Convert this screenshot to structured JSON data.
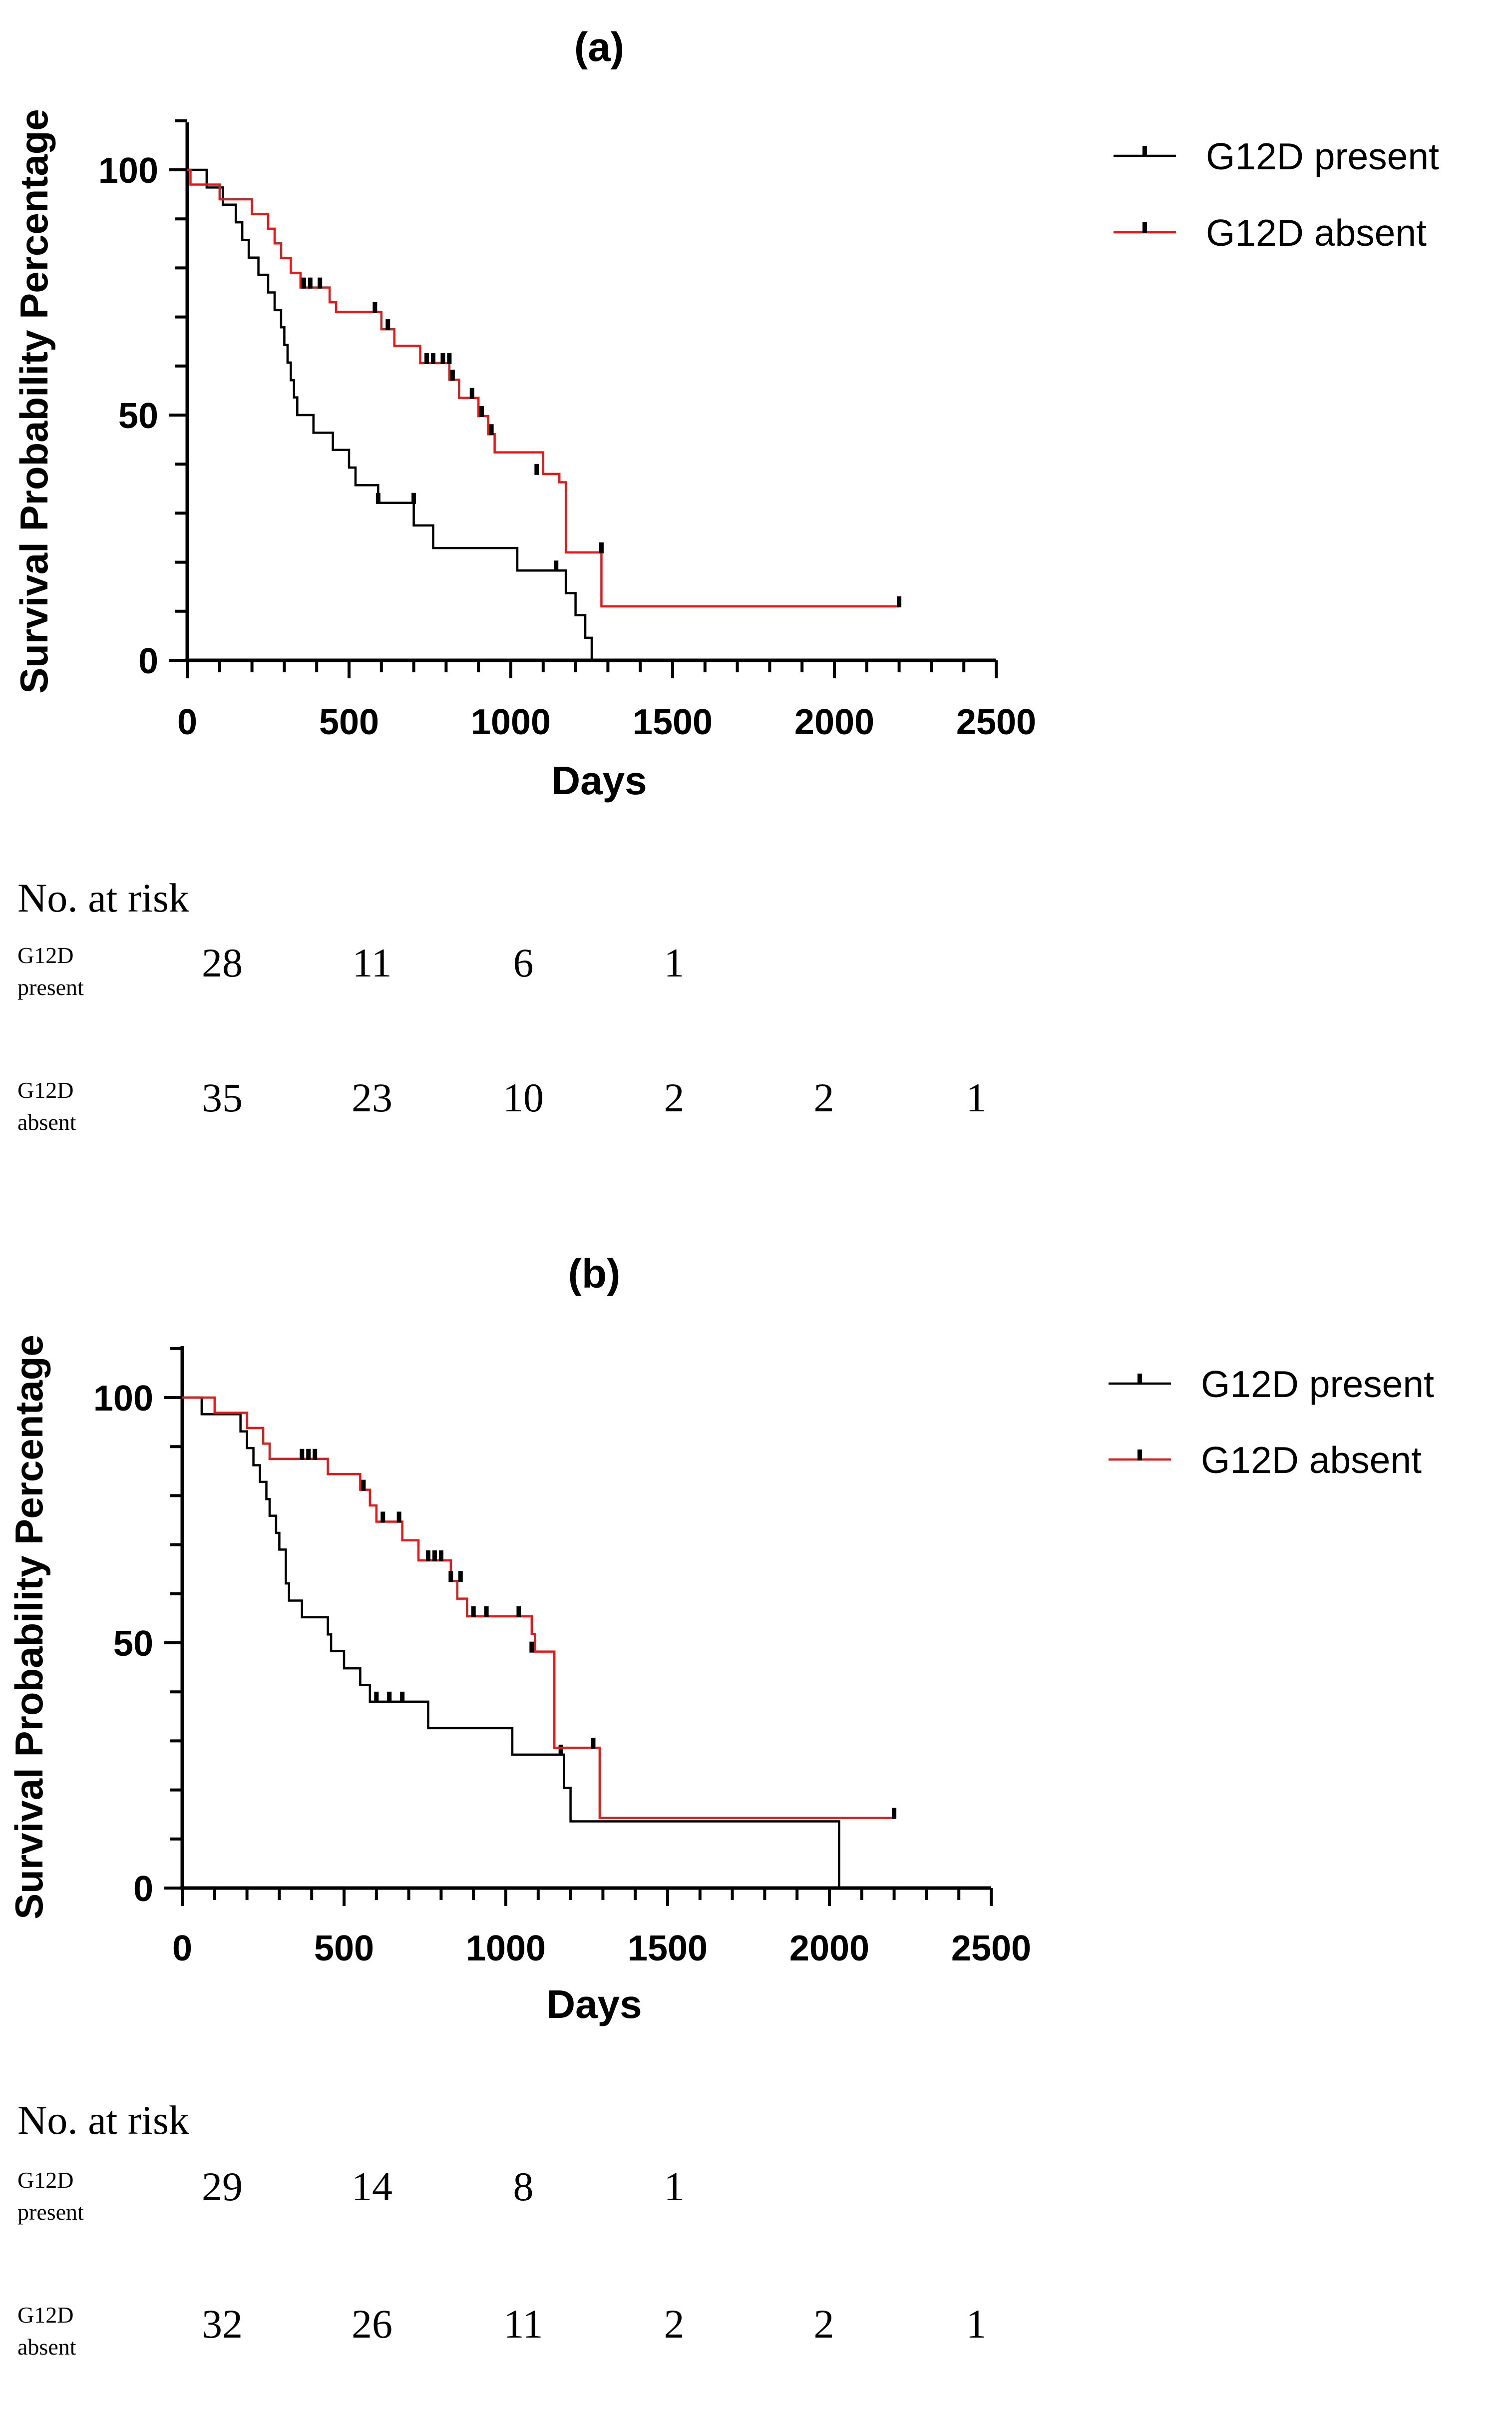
{
  "colors": {
    "present": "#000000",
    "absent": "#e01b1b",
    "axis": "#000000"
  },
  "chart_data": [
    {
      "type": "line",
      "subtype": "kaplan-meier",
      "title": "(a)",
      "xlabel": "Days",
      "ylabel": "Survival Probability Percentage",
      "xlim": [
        0,
        2500
      ],
      "ylim": [
        0,
        110
      ],
      "xticks": [
        0,
        500,
        1000,
        1500,
        2000,
        2500
      ],
      "yticks": [
        0,
        50,
        100
      ],
      "legend_position": "top-right",
      "series": [
        {
          "name": "G12D present",
          "color": "#000000",
          "steps": [
            [
              0,
              100
            ],
            [
              60,
              96.4
            ],
            [
              110,
              92.9
            ],
            [
              150,
              89.3
            ],
            [
              170,
              85.7
            ],
            [
              190,
              82.1
            ],
            [
              220,
              78.6
            ],
            [
              250,
              75
            ],
            [
              270,
              71.4
            ],
            [
              290,
              67.9
            ],
            [
              300,
              64.3
            ],
            [
              310,
              60.7
            ],
            [
              320,
              57.1
            ],
            [
              330,
              53.6
            ],
            [
              340,
              50
            ],
            [
              390,
              46.4
            ],
            [
              450,
              42.9
            ],
            [
              500,
              39.3
            ],
            [
              520,
              35.7
            ],
            [
              590,
              32.1
            ],
            [
              700,
              27.5
            ],
            [
              760,
              22.9
            ],
            [
              1020,
              18.3
            ],
            [
              1170,
              13.7
            ],
            [
              1200,
              9.2
            ],
            [
              1230,
              4.6
            ],
            [
              1250,
              0
            ]
          ],
          "end": 1250,
          "censored": [
            [
              590,
              32.1
            ],
            [
              700,
              32.1
            ],
            [
              1140,
              18.3
            ]
          ]
        },
        {
          "name": "G12D absent",
          "color": "#e01b1b",
          "steps": [
            [
              0,
              100
            ],
            [
              10,
              97
            ],
            [
              100,
              94
            ],
            [
              200,
              91
            ],
            [
              250,
              88
            ],
            [
              270,
              85
            ],
            [
              290,
              82
            ],
            [
              320,
              79
            ],
            [
              350,
              76
            ],
            [
              440,
              73
            ],
            [
              460,
              71
            ],
            [
              600,
              67.5
            ],
            [
              640,
              64.1
            ],
            [
              720,
              60.6
            ],
            [
              810,
              57.2
            ],
            [
              840,
              53.5
            ],
            [
              900,
              49.8
            ],
            [
              930,
              46.1
            ],
            [
              950,
              42.4
            ],
            [
              1100,
              38
            ],
            [
              1150,
              36.3
            ],
            [
              1170,
              22
            ],
            [
              1280,
              11
            ]
          ],
          "end": 2200,
          "censored": [
            [
              360,
              76
            ],
            [
              380,
              76
            ],
            [
              410,
              76
            ],
            [
              580,
              71
            ],
            [
              620,
              67.5
            ],
            [
              740,
              60.6
            ],
            [
              760,
              60.6
            ],
            [
              790,
              60.6
            ],
            [
              810,
              60.6
            ],
            [
              820,
              57.2
            ],
            [
              880,
              53.5
            ],
            [
              910,
              49.8
            ],
            [
              940,
              46.1
            ],
            [
              1080,
              38
            ],
            [
              1280,
              22
            ],
            [
              2200,
              11
            ]
          ]
        }
      ],
      "risk_table": {
        "heading": "No. at risk",
        "rows": [
          {
            "label_line1": "G12D",
            "label_line2": "present",
            "counts": [
              "28",
              "11",
              "6",
              "1"
            ]
          },
          {
            "label_line1": "G12D",
            "label_line2": "absent",
            "counts": [
              "35",
              "23",
              "10",
              "2",
              "2",
              "1"
            ]
          }
        ]
      }
    },
    {
      "type": "line",
      "subtype": "kaplan-meier",
      "title": "(b)",
      "xlabel": "Days",
      "ylabel": "Survival Probability Percentage",
      "xlim": [
        0,
        2500
      ],
      "ylim": [
        0,
        110
      ],
      "xticks": [
        0,
        500,
        1000,
        1500,
        2000,
        2500
      ],
      "yticks": [
        0,
        50,
        100
      ],
      "legend_position": "top-right",
      "series": [
        {
          "name": "G12D present",
          "color": "#000000",
          "steps": [
            [
              0,
              100
            ],
            [
              60,
              96.6
            ],
            [
              180,
              93.1
            ],
            [
              200,
              89.7
            ],
            [
              220,
              86.2
            ],
            [
              240,
              82.8
            ],
            [
              260,
              79.3
            ],
            [
              270,
              75.9
            ],
            [
              290,
              72.4
            ],
            [
              300,
              69
            ],
            [
              320,
              62.1
            ],
            [
              330,
              58.6
            ],
            [
              370,
              55.2
            ],
            [
              450,
              51.7
            ],
            [
              460,
              48.3
            ],
            [
              500,
              44.8
            ],
            [
              550,
              41.4
            ],
            [
              580,
              38
            ],
            [
              760,
              32.6
            ],
            [
              1020,
              27.2
            ],
            [
              1180,
              20.4
            ],
            [
              1200,
              13.6
            ],
            [
              2030,
              0
            ]
          ],
          "end": 2030,
          "censored": [
            [
              600,
              38
            ],
            [
              640,
              38
            ],
            [
              680,
              38
            ],
            [
              1170,
              27.2
            ]
          ]
        },
        {
          "name": "G12D absent",
          "color": "#e01b1b",
          "steps": [
            [
              0,
              100
            ],
            [
              100,
              96.9
            ],
            [
              200,
              93.8
            ],
            [
              250,
              90.6
            ],
            [
              270,
              87.5
            ],
            [
              450,
              84.4
            ],
            [
              550,
              81.2
            ],
            [
              580,
              78
            ],
            [
              600,
              74.7
            ],
            [
              680,
              70.9
            ],
            [
              730,
              66.8
            ],
            [
              830,
              62.6
            ],
            [
              850,
              59
            ],
            [
              880,
              55.4
            ],
            [
              1080,
              51.8
            ],
            [
              1090,
              48.2
            ],
            [
              1150,
              28.6
            ],
            [
              1290,
              14.3
            ]
          ],
          "end": 2200,
          "censored": [
            [
              370,
              87.5
            ],
            [
              390,
              87.5
            ],
            [
              410,
              87.5
            ],
            [
              560,
              81.2
            ],
            [
              620,
              74.7
            ],
            [
              670,
              74.7
            ],
            [
              760,
              66.8
            ],
            [
              780,
              66.8
            ],
            [
              800,
              66.8
            ],
            [
              830,
              62.6
            ],
            [
              860,
              62.6
            ],
            [
              900,
              55.4
            ],
            [
              940,
              55.4
            ],
            [
              1040,
              55.4
            ],
            [
              1080,
              48.2
            ],
            [
              1270,
              28.6
            ],
            [
              2200,
              14.3
            ]
          ]
        }
      ],
      "risk_table": {
        "heading": "No. at risk",
        "rows": [
          {
            "label_line1": "G12D",
            "label_line2": "present",
            "counts": [
              "29",
              "14",
              "8",
              "1"
            ]
          },
          {
            "label_line1": "G12D",
            "label_line2": "absent",
            "counts": [
              "32",
              "26",
              "11",
              "2",
              "2",
              "1"
            ]
          }
        ]
      }
    }
  ]
}
